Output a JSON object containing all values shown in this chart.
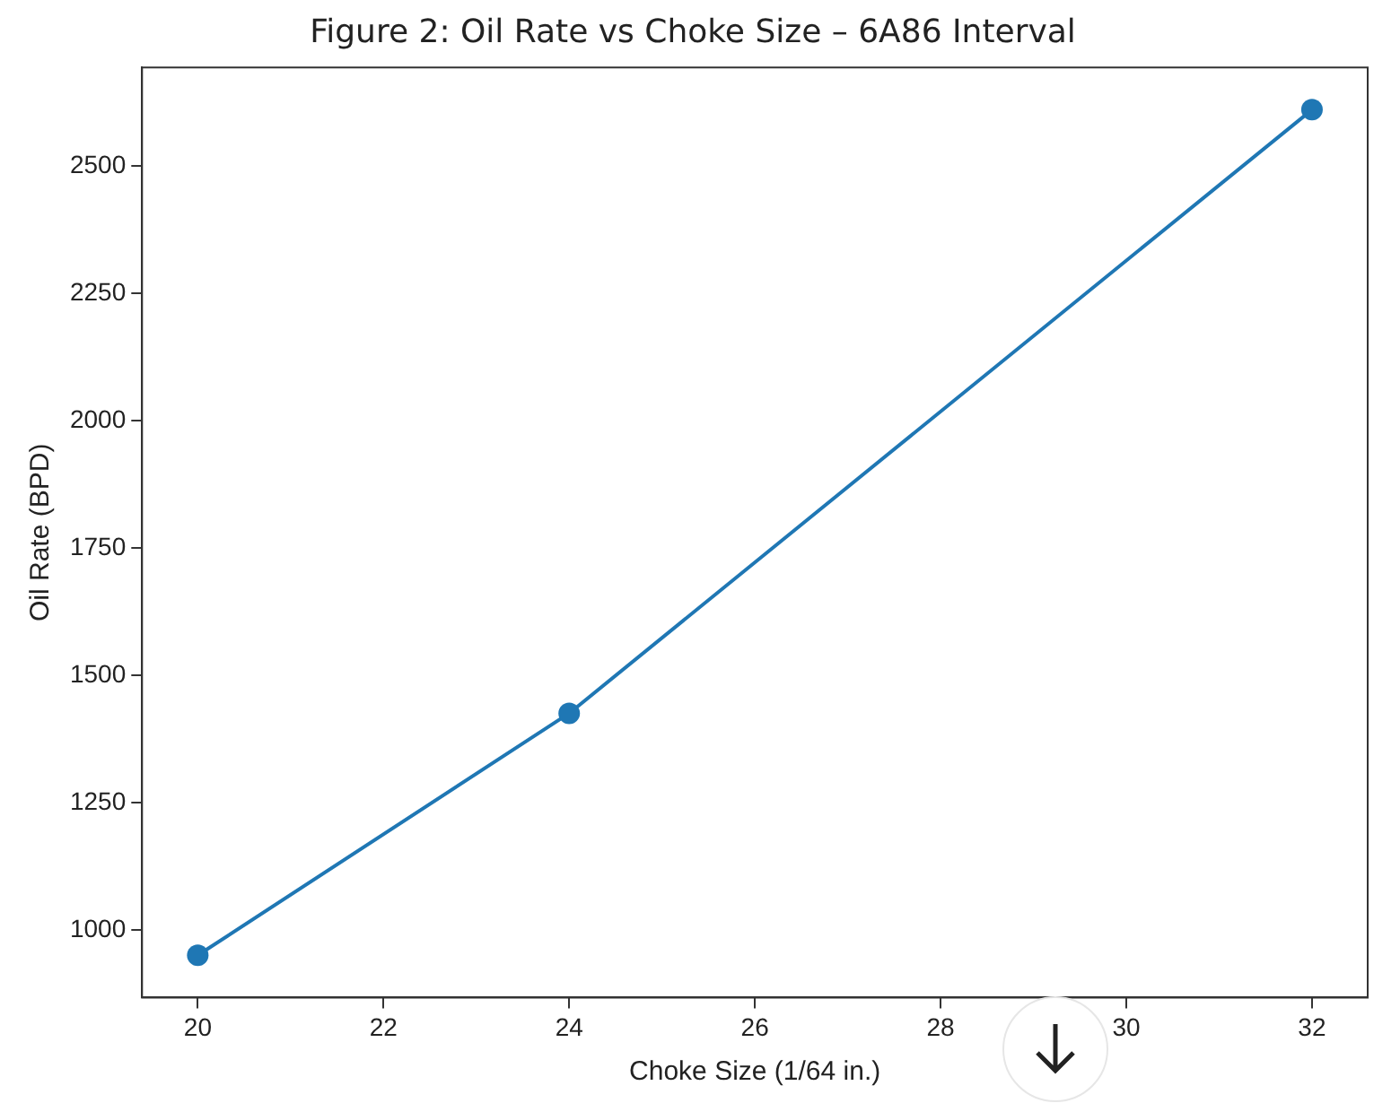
{
  "chart_data": {
    "type": "line",
    "title": "Figure 2: Oil Rate vs Choke Size – 6A86 Interval",
    "xlabel": "Choke Size (1/64 in.)",
    "ylabel": "Oil Rate (BPD)",
    "x": [
      20,
      24,
      32
    ],
    "series": [
      {
        "color": "#1f77b4",
        "values": [
          950,
          1425,
          2610
        ]
      }
    ],
    "xlim": [
      19.4,
      32.6
    ],
    "xticks": [
      20,
      22,
      24,
      26,
      28,
      30,
      32
    ],
    "ylim": [
      867,
      2693
    ],
    "yticks": [
      1000,
      1250,
      1500,
      1750,
      2000,
      2250,
      2500
    ],
    "grid": false,
    "legend": false,
    "marker": "circle",
    "line_style": "solid"
  }
}
